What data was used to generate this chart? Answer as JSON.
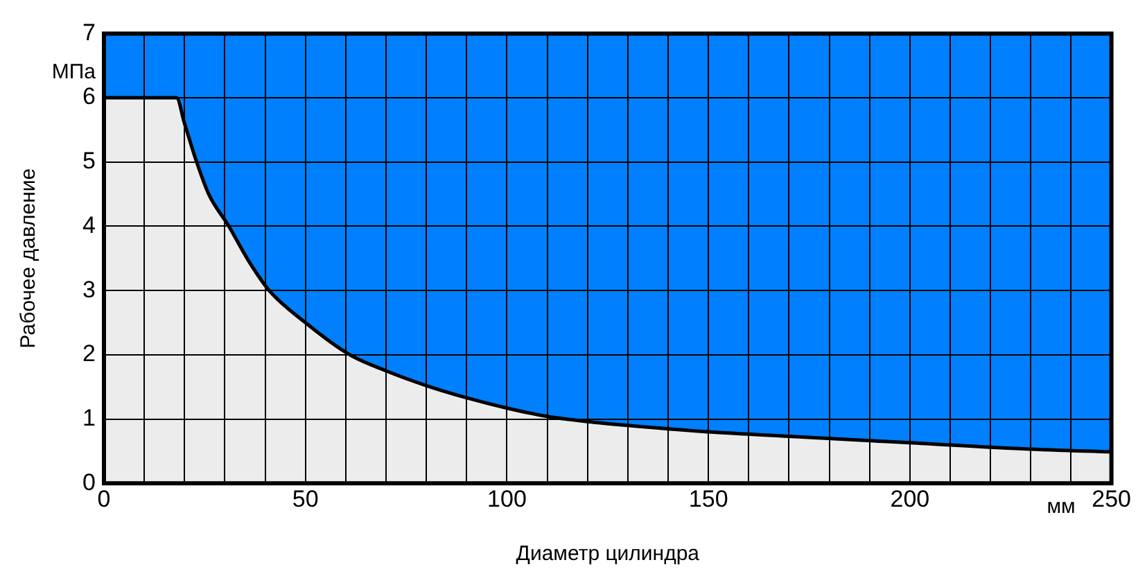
{
  "chart_data": {
    "type": "area",
    "xlabel": "Диаметр цилиндра",
    "ylabel": "Рабочее давление",
    "annotations": [
      "МПа",
      "мм"
    ],
    "x": [
      0,
      18,
      20,
      23,
      26,
      31,
      36,
      41,
      50,
      61,
      70,
      80,
      90,
      100,
      110,
      120,
      130,
      150,
      170,
      200,
      230,
      250
    ],
    "series": [
      {
        "color": "#ececec",
        "values": [
          6,
          6,
          5.6,
          5,
          4.5,
          4,
          3.45,
          3,
          2.5,
          2,
          1.75,
          1.52,
          1.33,
          1.17,
          1.04,
          0.96,
          0.9,
          0.8,
          0.73,
          0.63,
          0.53,
          0.49
        ]
      }
    ],
    "bands": [
      {
        "axis": "y",
        "from": 0,
        "to": 7,
        "color": "#0080ff"
      }
    ],
    "xlim": [
      0,
      250
    ],
    "xticks": [
      0,
      {
        "value": 10,
        "label": null
      },
      {
        "value": 20,
        "label": null
      },
      {
        "value": 30,
        "label": null
      },
      {
        "value": 40,
        "label": null
      },
      50,
      {
        "value": 60,
        "label": null
      },
      {
        "value": 70,
        "label": null
      },
      {
        "value": 80,
        "label": null
      },
      {
        "value": 90,
        "label": null
      },
      100,
      {
        "value": 110,
        "label": null
      },
      {
        "value": 120,
        "label": null
      },
      {
        "value": 130,
        "label": null
      },
      {
        "value": 140,
        "label": null
      },
      150,
      {
        "value": 160,
        "label": null
      },
      {
        "value": 170,
        "label": null
      },
      {
        "value": 180,
        "label": null
      },
      {
        "value": 190,
        "label": null
      },
      200,
      {
        "value": 210,
        "label": null
      },
      {
        "value": 220,
        "label": null
      },
      {
        "value": 230,
        "label": null
      },
      {
        "value": 240,
        "label": null
      },
      250
    ],
    "ylim": [
      0,
      7
    ],
    "yticks": [
      0,
      1,
      2,
      3,
      4,
      5,
      6,
      7
    ],
    "grid": true,
    "legend": false,
    "marker": "none",
    "line_style": "solid"
  }
}
